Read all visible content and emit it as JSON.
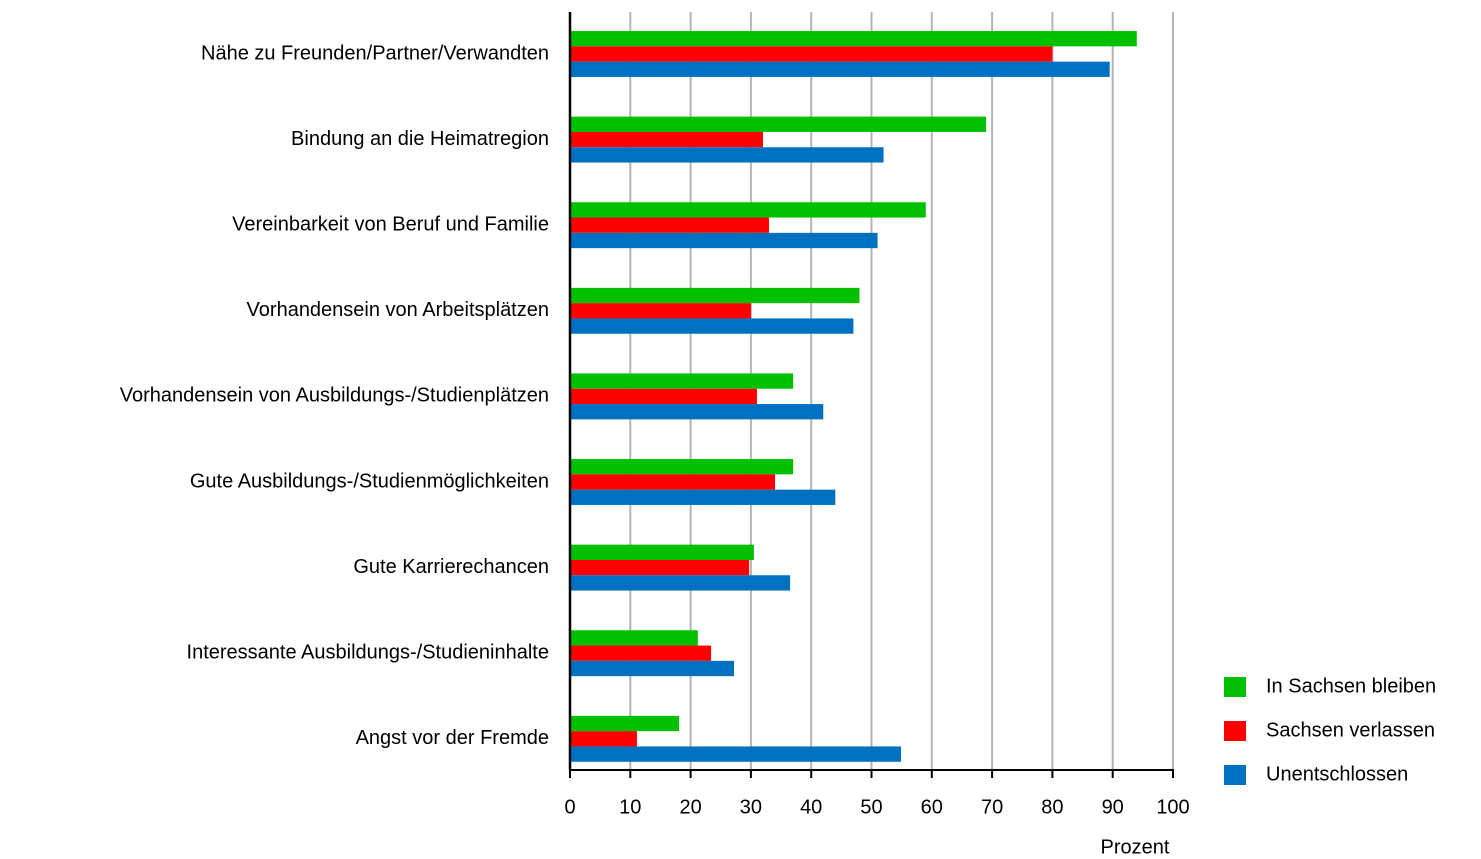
{
  "chart_data": {
    "type": "barh",
    "xlabel": "Prozent",
    "categories": [
      "Nähe zu Freunden/Partner/Verwandten",
      "Bindung an die Heimatregion",
      "Vereinbarkeit von Beruf und Familie",
      "Vorhandensein von Arbeitsplätzen",
      "Vorhandensein von Ausbildungs-/Studienplätzen",
      "Gute Ausbildungs-/Studienmöglichkeiten",
      "Gute Karrierechancen",
      "Interessante Ausbildungs-/Studieninhalte",
      "Angst vor der Fremde"
    ],
    "series": [
      {
        "name": "In Sachsen bleiben",
        "color": "#00c000",
        "values": [
          94,
          69,
          59,
          48,
          37,
          37,
          30.5,
          21.2,
          18.1
        ]
      },
      {
        "name": "Sachsen verlassen",
        "color": "#ff0000",
        "values": [
          80,
          32,
          33,
          30,
          31,
          34,
          29.7,
          23.4,
          11.1
        ]
      },
      {
        "name": "Unentschlossen",
        "color": "#0070c0",
        "values": [
          89.5,
          52,
          51,
          47,
          42,
          44,
          36.5,
          27.2,
          54.9
        ]
      }
    ],
    "xlim": [
      0,
      100
    ],
    "xticks": [
      0,
      10,
      20,
      30,
      40,
      50,
      60,
      70,
      80,
      90,
      100
    ],
    "grid": true,
    "legend": "right"
  }
}
